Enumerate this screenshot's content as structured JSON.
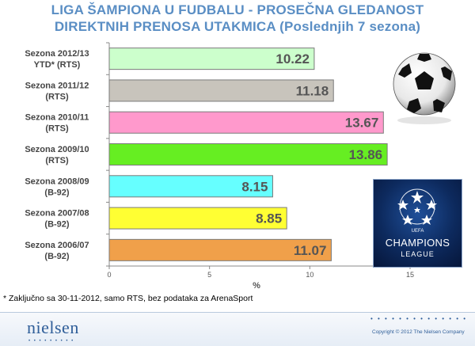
{
  "title_line1": "LIGA ŠAMPIONA U FUDBALU - PROSEČNA GLEDANOST",
  "title_line2": "DIREKTNIH PRENOSA UTAKMICA (Poslednjih 7 sezona)",
  "footnote": "* Zaključno sa 30-11-2012, samo RTS, bez podataka za ArenaSport",
  "footer": {
    "logo_text": "nielsen",
    "copyright": "Copyright © 2012 The Nielsen Company"
  },
  "champions_logo": {
    "uefa": "UEFA",
    "line1": "CHAMPIONS",
    "line2": "LEAGUE"
  },
  "chart_data": {
    "type": "bar",
    "orientation": "horizontal",
    "categories": [
      [
        "Sezona 2012/13",
        "YTD* (RTS)"
      ],
      [
        "Sezona 2011/12",
        "(RTS)"
      ],
      [
        "Sezona 2010/11",
        "(RTS)"
      ],
      [
        "Sezona 2009/10",
        "(RTS)"
      ],
      [
        "Sezona 2008/09",
        "(B-92)"
      ],
      [
        "Sezona 2007/08",
        "(B-92)"
      ],
      [
        "Sezona 2006/07",
        "(B-92)"
      ]
    ],
    "values": [
      10.22,
      11.18,
      13.67,
      13.86,
      8.15,
      8.85,
      11.07
    ],
    "value_labels": [
      "10.22",
      "11.18",
      "13.67",
      "13.86",
      "8.15",
      "8.85",
      "11.07"
    ],
    "bar_colors": [
      "#ccffcc",
      "#c8c4bc",
      "#ff99cc",
      "#66ee22",
      "#66ffff",
      "#ffff33",
      "#f0a04a"
    ],
    "xlabel": "%",
    "xticks": [
      "0",
      "5",
      "10",
      "15"
    ],
    "xtick_values": [
      0,
      5,
      10,
      15
    ],
    "xlim": [
      0,
      15
    ],
    "grid": false
  }
}
